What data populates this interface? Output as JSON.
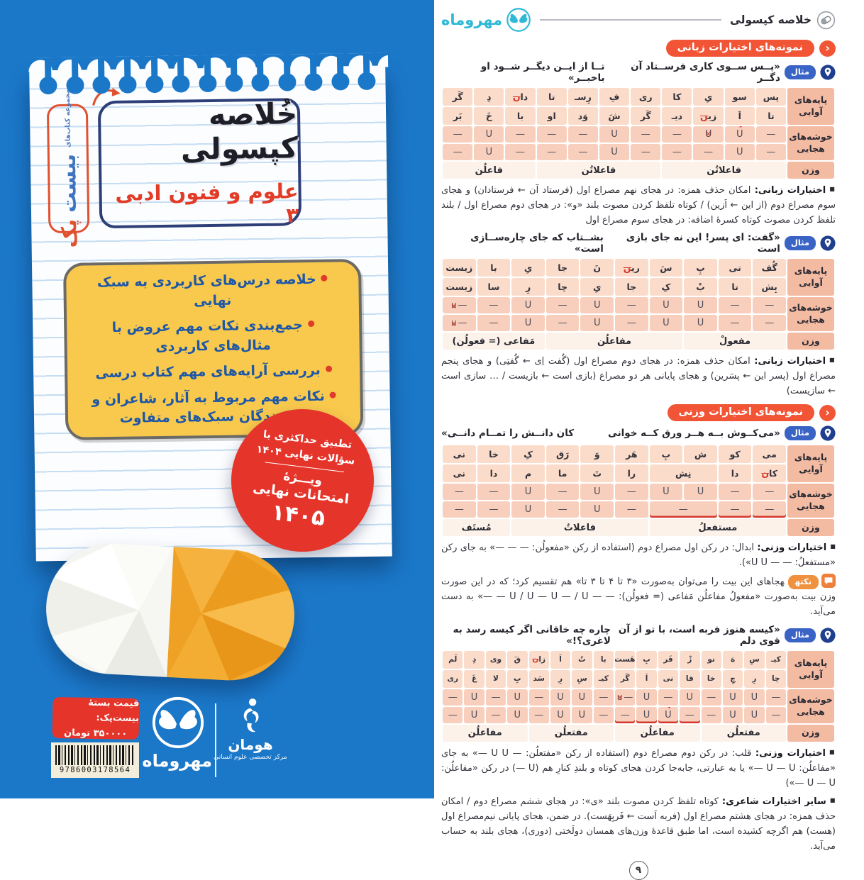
{
  "colors": {
    "cover_blue": "#1b78c9",
    "cover_red": "#e5352b",
    "cover_yellow": "#f9c94d",
    "feature_text_blue": "#1d57a6",
    "section_badge_red": "#f15536",
    "example_badge_blue": "#3a63c6",
    "note_badge_orange": "#f0913f",
    "table_salmon": "#fbdcca",
    "logo_cyan": "#2fb9d6",
    "mark_red": "#d4382b"
  },
  "cover": {
    "series_badge": {
      "top_label": "مجموعه کتاب‌های",
      "word_blue": "بیست",
      "word_orange": "پک"
    },
    "title": "خُلاصه کپسولی",
    "subtitle": "علوم و فنون ادبی ۳",
    "features": [
      "خلاصه درس‌های کاربردی به سبک نهایی",
      "جمع‌بندی نکات مهم عروض با مثال‌های کاربردی",
      "بررسی آرایه‌های مهم کتاب درسی",
      "نکات مهم مربوط به آثار، شاعران و نویسندگان سبک‌های متفاوت"
    ],
    "promo_badge": {
      "line1": "تطبیق حداکثری با",
      "line2": "سؤالات نهایی ۱۴۰۴",
      "line3": "ویـــژهٔ",
      "line4": "امتحانات نهایی",
      "line5": "۱۴۰۵"
    },
    "price": {
      "label": "قیمت بستهٔ بیست‌پک:",
      "value": "۳۵۰۰۰۰ تومان"
    },
    "barcode_number": "9786003178564",
    "publisher_mehromah": "مهروماه",
    "publisher_human": "هومان",
    "publisher_human_tagline": "مرکز تخصصی علوم انسانی"
  },
  "page": {
    "header": {
      "title": "خلاصه کپسولی",
      "logo_text": "مهروماه"
    },
    "bullet": "■",
    "example_label": "مثال",
    "note_label": "نکته",
    "section1_title": "نمونه‌های اختیارات زبانی",
    "section2_title": "نمونه‌های اختیارات وزنی",
    "row_headers": {
      "phonetic": "پایه‌های آوایی",
      "clusters": "خوشه‌های هجایی",
      "weight": "وزن"
    },
    "examples": [
      {
        "verse_a": "«پــس ســوی کاری فرســتاد آن دگــر",
        "verse_b": "تــا از ایــن دیگــر شــود او باخبــر»"
      },
      {
        "verse_a": "«گفت: ای پسر! این نه جای بازی است",
        "verse_b": "بشــتاب که جای چاره‌ســازی است»"
      },
      {
        "verse_a": "«می‌کــوش بــه هــر ورق کــه خوانی",
        "verse_b": "کان دانــش را تمــام دانــی»"
      },
      {
        "verse_a": "«کیسه هنوز فربه است، با تو از آن قوی دلم",
        "verse_b": "چاره چه خاقانی اگر کیسه رسد به لاغری؟!»"
      }
    ],
    "paragraphs": [
      {
        "lead": "اختیارات زبانی:",
        "text": "امکان حذف همزه: در هجای نهم مصراع اول (فرستاد آن ← فرستادان) و هجای سوم مصراع دوم (از این ← اَزین) / کوتاه تلفظ کردن مصوت بلند «و»: در هجای دوم مصراع اول / بلند تلفظ کردن مصوت کوتاه کسرهٔ اضافه: در هجای سوم مصراع اول"
      },
      {
        "lead": "اختیارات زبانی:",
        "text": "امکان حذف همزه: در هجای دوم مصراع اول (گُفت اِی ← گُفتِی) و هجای پنجم مصراع اول (پسر این ← پسَرین) و هجای پایانی هر دو مصراع (بازی است ← بازیست / … سازی است ← سازیست)"
      },
      {
        "lead": "اختیارات وزنی:",
        "text": "ابدال: در رکن اول مصراع دوم (استفاده از رکن «مفعولُن: — — —» به جای رکن «مستفعلُ: — — U U»)."
      },
      {
        "lead": "اختیارات وزنی:",
        "text": "قلب: در رکن دوم مصراع دوم (استفاده از رکن «مفتعلُن: — U U —» به جای «مفاعلُن: U — U —» یا به عبارتی، جابه‌جا کردن هجای کوتاه و بلندِ کنارِ هم (U —) در رکن «مفاعلُن: U — U —»)"
      },
      {
        "lead": "سایر اختیارات شاعری:",
        "text": "کوتاه تلفظ کردن مصوت بلند «ی»: در هجای ششم مصراع دوم / امکان حذف همزه: در هجای هشتم مصراع اول (فربه اَست ← فَربِهَست). در ضمن، هجای پایانی نیم‌مصراع اول (هست) هم اگرچه کشیده است، اما طبق قاعدهٔ وزن‌های همسان دولَختی (دوری)، هجای بلند به حساب می‌آید."
      }
    ],
    "note_text": "هجاهای این بیت را می‌توان به‌صورت «۳ تا ۴ تا ۳ تا» هم تقسیم کرد؛ که در این صورت وزن بیت به‌صورت «مفعولُ مفاعلُن مَفاعی (= فعولُن): — — U / U — U — / U — —» به دست می‌آید.",
    "tables": [
      {
        "syll1": [
          "پس",
          "سو",
          "یِ",
          "کا",
          "ری",
          "فِ",
          "رِسـ",
          "تا",
          "دا[[ن]]",
          "دِ",
          "گَر"
        ],
        "syll2": [
          "تا",
          "اَ",
          "زی[[ن]]",
          "دیـ",
          "گَر",
          "شَ",
          "وَد",
          "او",
          "با",
          "خَ",
          "بَر"
        ],
        "scan1": [
          "-",
          "U~",
          "X",
          "-",
          "-",
          "U",
          "-",
          "-",
          "-",
          "U",
          "-"
        ],
        "scan2": [
          "-",
          "U",
          "-",
          "-",
          "-",
          "U",
          "-",
          "-",
          "-",
          "U",
          "-"
        ],
        "weights": [
          {
            "t": "فاعلاتُن",
            "span": 4
          },
          {
            "t": "فاعلاتُن",
            "span": 4
          },
          {
            "t": "فاعلُن",
            "span": 3
          }
        ]
      },
      {
        "syll1": [
          "گُف",
          "تی",
          "پِ",
          "سَ",
          "ری[[ن]]",
          "نَ",
          "جا",
          "یِ",
          "با",
          "زیست"
        ],
        "syll2": [
          "بِش",
          "تا",
          "بْ",
          "کِ",
          "جا",
          "یِ",
          "چا",
          "رِ",
          "سا",
          "زیست"
        ],
        "scan1": [
          "-",
          "-",
          "U",
          "U",
          "-",
          "U",
          "-",
          "U",
          "-",
          "-X"
        ],
        "scan2": [
          "-",
          "-",
          "U",
          "U",
          "-",
          "U",
          "-",
          "U",
          "-",
          "-X"
        ],
        "weights": [
          {
            "t": "مفعولْ",
            "span": 3
          },
          {
            "t": "مفاعلُن",
            "span": 4
          },
          {
            "t": "مَفاعی (= فعولُن)",
            "span": 3
          }
        ]
      },
      {
        "syll1": [
          "می",
          "کو",
          "ش",
          "بِ",
          "هَر",
          "وَ",
          "رَق",
          "کِ",
          "خا",
          "نی"
        ],
        "syll2": [
          "کا[[ن]]",
          "دا",
          {
            "t": "نِش",
            "span": 2
          },
          "را",
          "تَ",
          "ما",
          "م",
          "دا",
          "نی"
        ],
        "scan1": [
          "-",
          "-",
          "U",
          "U",
          "-",
          "U",
          "-",
          "U",
          "-",
          "-"
        ],
        "scan2": [
          {
            "t": "-",
            "u": 1
          },
          {
            "t": "-",
            "u": 1
          },
          {
            "t": "-",
            "span": 2,
            "u": 1
          },
          "-",
          "U",
          "-",
          "U",
          "-",
          "-"
        ],
        "weights": [
          {
            "t": "مستفعلُ",
            "span": 4
          },
          {
            "t": "فاعلاتُ",
            "span": 4
          },
          {
            "t": "مُستَف",
            "span": 2
          }
        ]
      },
      {
        "syll1": [
          "کیـ",
          "سِ",
          "هَ",
          "نو",
          "زْ",
          "فَر",
          "بِ",
          "هَست",
          "با",
          "تُ",
          "اَ",
          "زا[[ن]]",
          "قَ",
          "وی",
          "دِ",
          "لَم"
        ],
        "syll2": [
          "چا",
          "رِ",
          "چِ",
          "خا",
          "قا",
          "نی",
          "اَ",
          "گَر",
          "کیـ",
          "سِ",
          "رِ",
          "سَد",
          "بِ",
          "لا",
          "غَ",
          "ری"
        ],
        "scan1": [
          "-",
          "U",
          "U",
          "-",
          "U",
          "-",
          "U",
          "-X",
          "-",
          "U",
          "U",
          "-",
          "U",
          "-",
          "U",
          "-"
        ],
        "scan2": [
          "-",
          "U",
          "U",
          "-",
          {
            "t": "-",
            "u": 1
          },
          {
            "t": "U~",
            "u": 1
          },
          {
            "t": "U",
            "u": 1
          },
          {
            "t": "-",
            "u": 1
          },
          "-",
          "U",
          "U",
          "-",
          "U",
          "-",
          "U",
          "-"
        ],
        "weights": [
          {
            "t": "مفتعلُن",
            "span": 4
          },
          {
            "t": "مفاعلُن",
            "span": 4
          },
          {
            "t": "مفتعلُن",
            "span": 4
          },
          {
            "t": "مفاعلُن",
            "span": 4
          }
        ]
      }
    ],
    "page_number": "۹"
  }
}
